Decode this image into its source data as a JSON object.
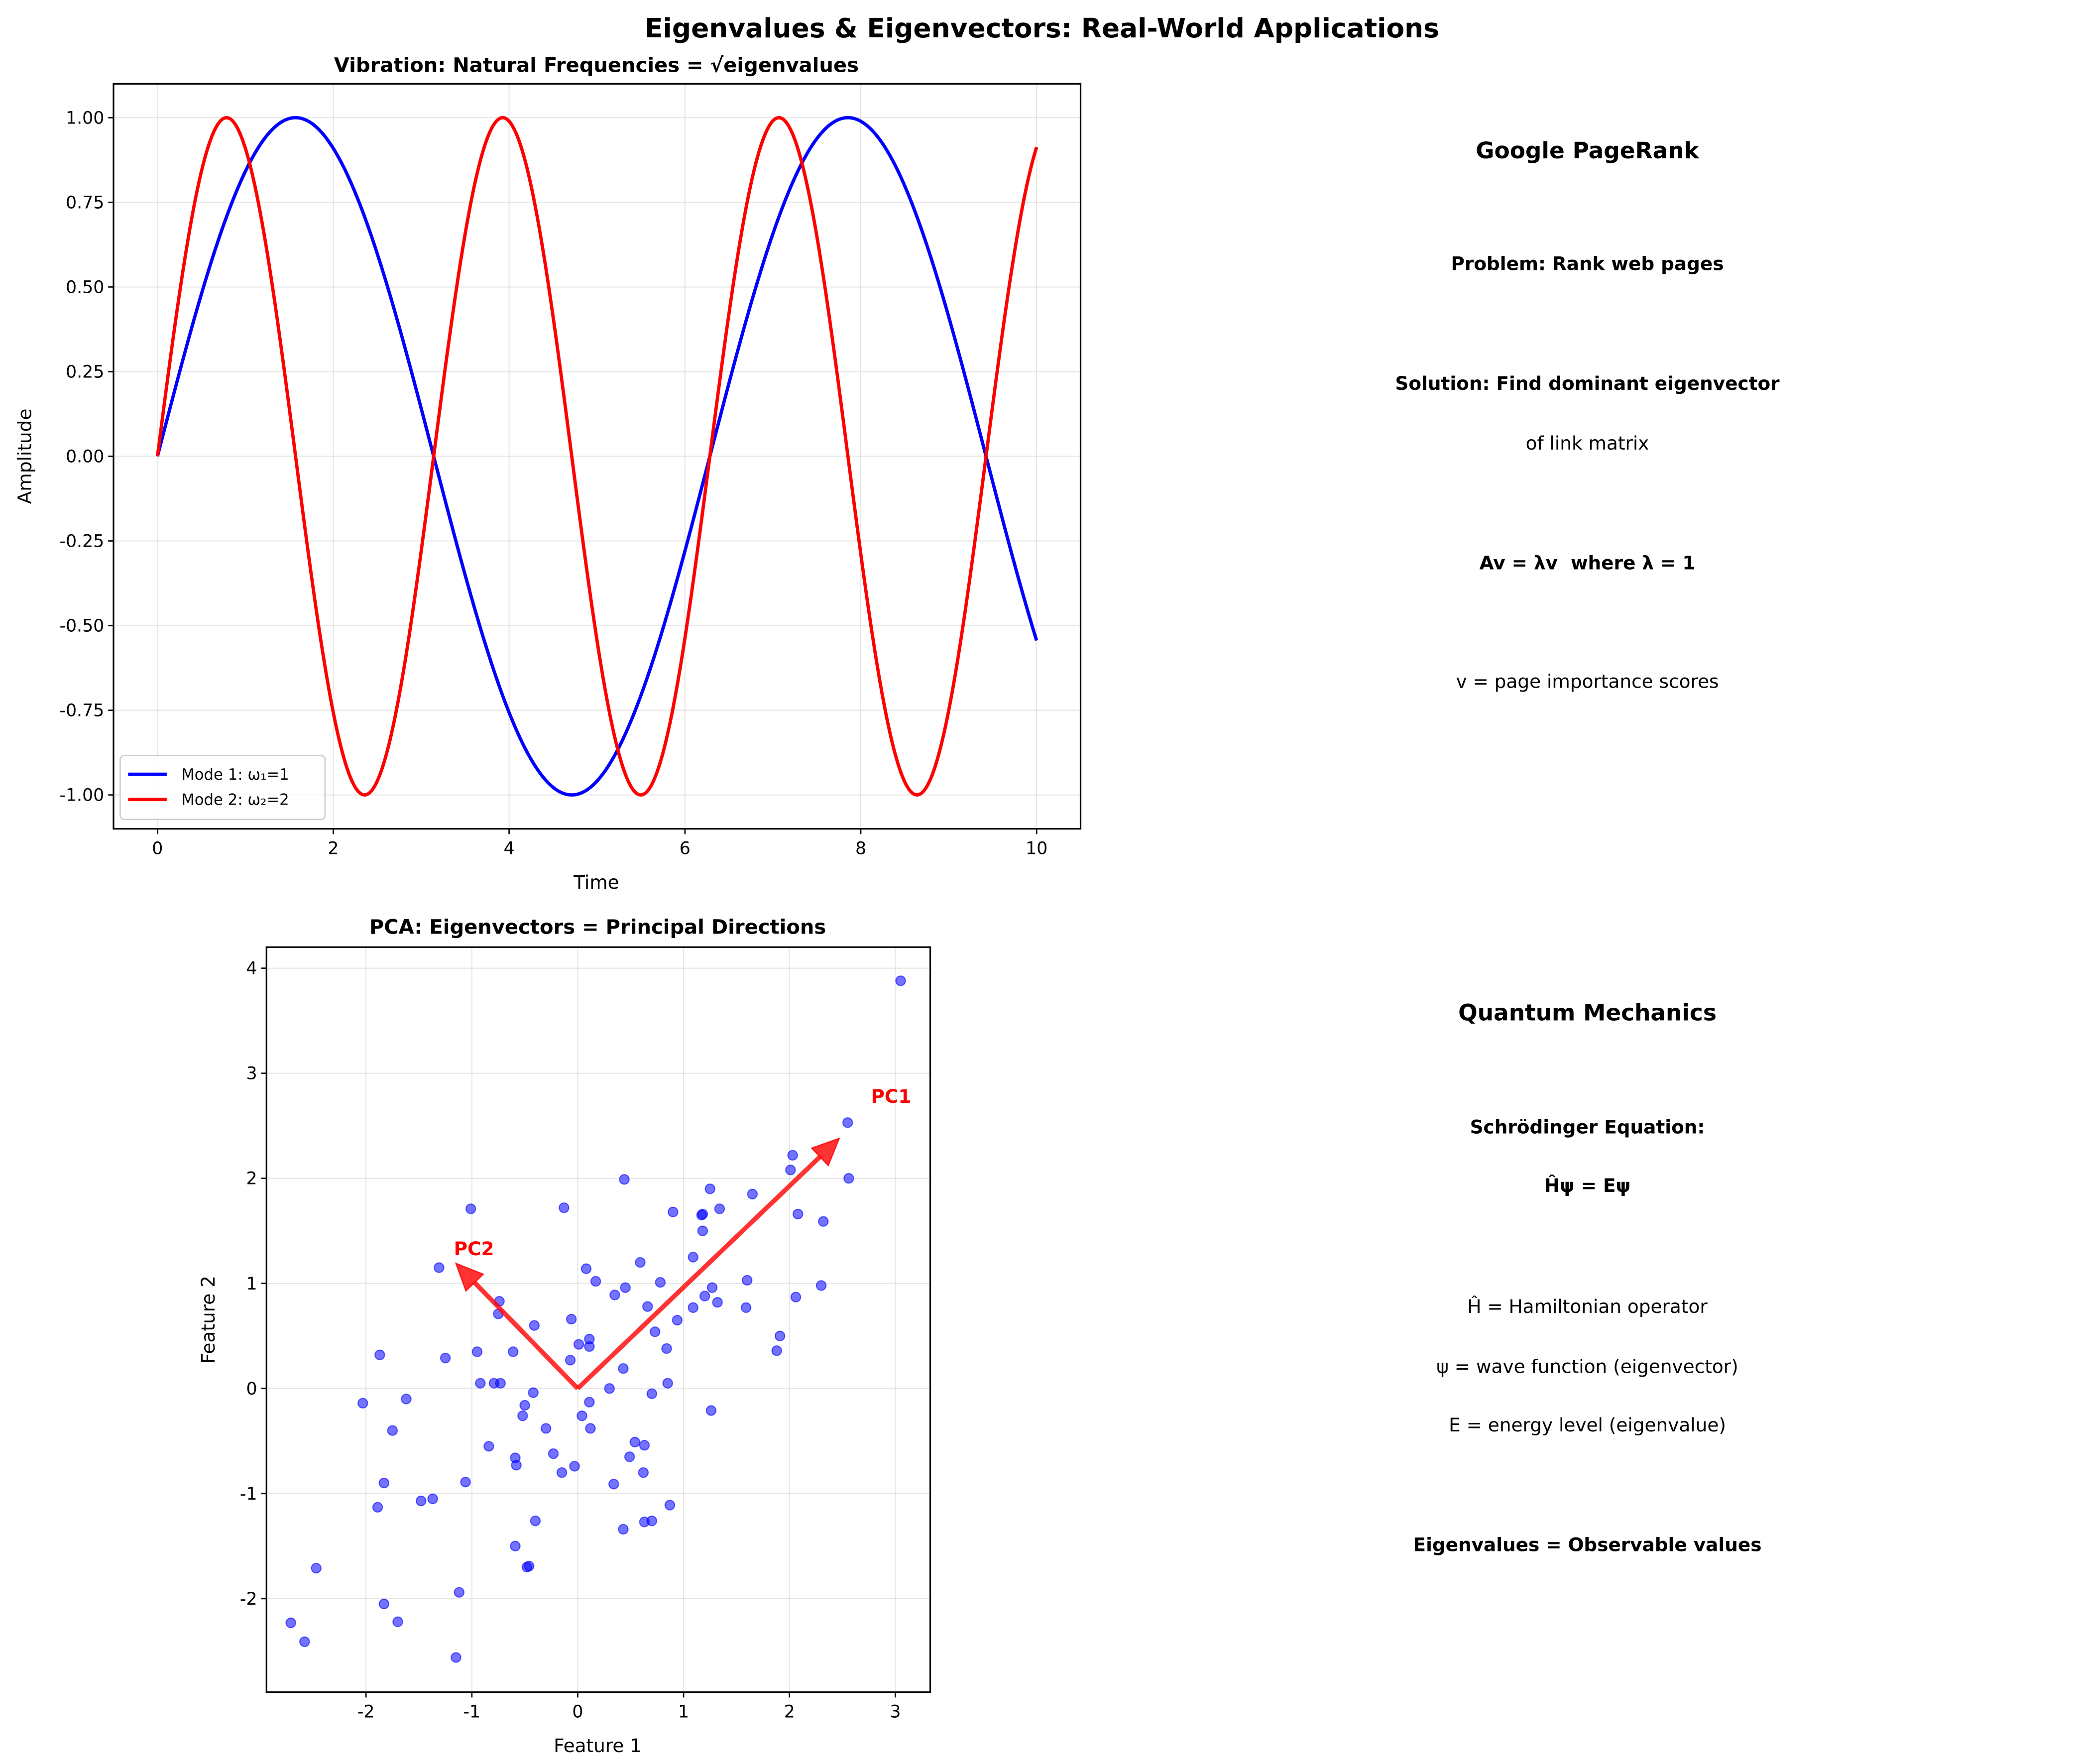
{
  "title": "Eigenvalues & Eigenvectors: Real-World Applications",
  "chart_data": [
    {
      "type": "line",
      "title": "Vibration: Natural Frequencies = √eigenvalues",
      "xlabel": "Time",
      "ylabel": "Amplitude",
      "xlim": [
        -0.5,
        10.5
      ],
      "ylim": [
        -1.1,
        1.1
      ],
      "xticks": [
        "0",
        "2",
        "4",
        "6",
        "8",
        "10"
      ],
      "yticks": [
        "-1.00",
        "-0.75",
        "-0.50",
        "-0.25",
        "0.00",
        "0.25",
        "0.50",
        "0.75",
        "1.00"
      ],
      "grid": true,
      "legend_position": "lower-left",
      "x_range": [
        0,
        10
      ],
      "series": [
        {
          "name": "Mode 1: ω₁=1",
          "function": "sin(1·t)",
          "omega": 1,
          "color": "#0000ff"
        },
        {
          "name": "Mode 2: ω₂=2",
          "function": "sin(2·t)",
          "omega": 2,
          "color": "#ff0000"
        }
      ]
    },
    {
      "type": "scatter",
      "title": "PCA: Eigenvectors = Principal Directions",
      "xlabel": "Feature 1",
      "ylabel": "Feature 2",
      "xlim": [
        -2.94,
        3.33
      ],
      "ylim": [
        -2.89,
        4.2
      ],
      "xticks": [
        "-2",
        "-1",
        "0",
        "1",
        "2",
        "3"
      ],
      "yticks": [
        "-2",
        "-1",
        "0",
        "1",
        "2",
        "3",
        "4"
      ],
      "grid": true,
      "point_color": "#0000ff",
      "points": [
        [
          3.05,
          3.88
        ],
        [
          2.55,
          2.53
        ],
        [
          2.56,
          2.0
        ],
        [
          2.03,
          2.22
        ],
        [
          2.01,
          2.08
        ],
        [
          1.65,
          1.85
        ],
        [
          1.25,
          1.9
        ],
        [
          1.34,
          1.71
        ],
        [
          1.17,
          1.65
        ],
        [
          1.18,
          1.66
        ],
        [
          1.18,
          1.5
        ],
        [
          0.9,
          1.68
        ],
        [
          0.44,
          1.99
        ],
        [
          -0.13,
          1.72
        ],
        [
          -1.01,
          1.71
        ],
        [
          2.08,
          1.66
        ],
        [
          2.32,
          1.59
        ],
        [
          1.09,
          1.25
        ],
        [
          0.59,
          1.2
        ],
        [
          0.08,
          1.14
        ],
        [
          0.17,
          1.02
        ],
        [
          0.78,
          1.01
        ],
        [
          0.45,
          0.96
        ],
        [
          0.35,
          0.89
        ],
        [
          -1.31,
          1.15
        ],
        [
          1.6,
          1.03
        ],
        [
          1.27,
          0.96
        ],
        [
          1.2,
          0.88
        ],
        [
          1.32,
          0.82
        ],
        [
          1.09,
          0.77
        ],
        [
          1.59,
          0.77
        ],
        [
          2.06,
          0.87
        ],
        [
          2.3,
          0.98
        ],
        [
          0.66,
          0.78
        ],
        [
          0.94,
          0.65
        ],
        [
          -0.06,
          0.66
        ],
        [
          -0.74,
          0.83
        ],
        [
          -0.75,
          0.71
        ],
        [
          -0.41,
          0.6
        ],
        [
          0.73,
          0.54
        ],
        [
          0.84,
          0.38
        ],
        [
          1.91,
          0.5
        ],
        [
          1.88,
          0.36
        ],
        [
          0.11,
          0.47
        ],
        [
          0.11,
          0.4
        ],
        [
          0.01,
          0.42
        ],
        [
          -0.07,
          0.27
        ],
        [
          -0.61,
          0.35
        ],
        [
          -0.95,
          0.35
        ],
        [
          -1.25,
          0.29
        ],
        [
          -1.87,
          0.32
        ],
        [
          0.43,
          0.19
        ],
        [
          -0.92,
          0.05
        ],
        [
          -0.79,
          0.05
        ],
        [
          -0.73,
          0.05
        ],
        [
          0.3,
          0.0
        ],
        [
          0.85,
          0.05
        ],
        [
          0.7,
          -0.05
        ],
        [
          1.26,
          -0.21
        ],
        [
          -0.42,
          -0.04
        ],
        [
          0.11,
          -0.13
        ],
        [
          -0.5,
          -0.16
        ],
        [
          -0.52,
          -0.26
        ],
        [
          0.04,
          -0.26
        ],
        [
          0.12,
          -0.38
        ],
        [
          -0.3,
          -0.38
        ],
        [
          -2.03,
          -0.14
        ],
        [
          -1.62,
          -0.1
        ],
        [
          -1.75,
          -0.4
        ],
        [
          -0.84,
          -0.55
        ],
        [
          0.54,
          -0.51
        ],
        [
          0.63,
          -0.54
        ],
        [
          0.49,
          -0.65
        ],
        [
          -0.59,
          -0.66
        ],
        [
          -0.58,
          -0.73
        ],
        [
          -0.23,
          -0.62
        ],
        [
          -0.03,
          -0.74
        ],
        [
          -0.15,
          -0.8
        ],
        [
          0.62,
          -0.8
        ],
        [
          0.34,
          -0.91
        ],
        [
          -1.06,
          -0.89
        ],
        [
          -1.83,
          -0.9
        ],
        [
          -1.89,
          -1.13
        ],
        [
          -1.48,
          -1.07
        ],
        [
          -1.37,
          -1.05
        ],
        [
          0.87,
          -1.11
        ],
        [
          -0.4,
          -1.26
        ],
        [
          0.63,
          -1.27
        ],
        [
          0.7,
          -1.26
        ],
        [
          0.43,
          -1.34
        ],
        [
          -0.59,
          -1.5
        ],
        [
          -0.48,
          -1.7
        ],
        [
          -0.46,
          -1.69
        ],
        [
          -2.47,
          -1.71
        ],
        [
          -1.12,
          -1.94
        ],
        [
          -1.83,
          -2.05
        ],
        [
          -1.7,
          -2.22
        ],
        [
          -2.71,
          -2.23
        ],
        [
          -2.58,
          -2.41
        ],
        [
          -1.15,
          -2.56
        ]
      ],
      "arrows": [
        {
          "label": "PC1",
          "from": [
            0,
            0
          ],
          "to": [
            2.47,
            2.38
          ],
          "label_at": [
            2.77,
            2.72
          ],
          "color": "#ff0000"
        },
        {
          "label": "PC2",
          "from": [
            0,
            0
          ],
          "to": [
            -1.15,
            1.19
          ],
          "label_at": [
            -1.17,
            1.27
          ],
          "color": "#ff0000"
        }
      ]
    }
  ],
  "pagerank": {
    "heading": "Google PageRank",
    "problem": "Problem: Rank web pages",
    "solution": "Solution: Find dominant eigenvector",
    "solution2": "of link matrix",
    "equation": "Av = λv  where λ = 1",
    "meaning": "v = page importance scores"
  },
  "quantum": {
    "heading": "Quantum Mechanics",
    "equation_label": "Schrödinger Equation:",
    "equation": "Ĥψ = Eψ",
    "h_def": "Ĥ = Hamiltonian operator",
    "psi_def": "ψ = wave function (eigenvector)",
    "e_def": "E = energy level (eigenvalue)",
    "conclusion": "Eigenvalues = Observable values"
  }
}
